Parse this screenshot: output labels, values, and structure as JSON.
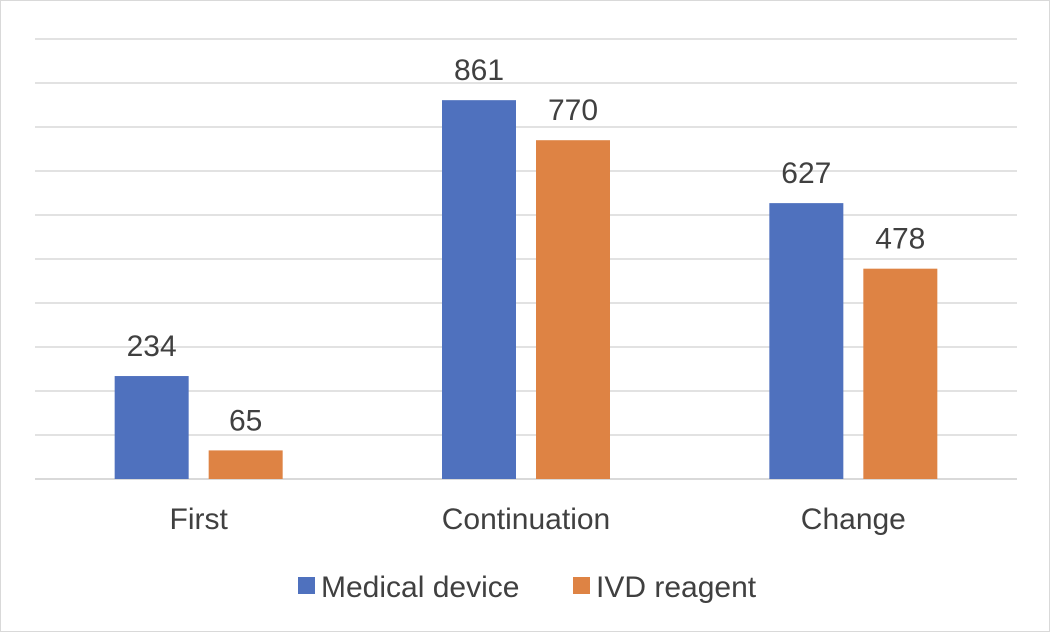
{
  "chart_data": {
    "type": "bar",
    "title": "",
    "xlabel": "",
    "ylabel": "",
    "categories": [
      "First",
      "Continuation",
      "Change"
    ],
    "series": [
      {
        "name": "Medical device",
        "values": [
          234,
          861,
          627
        ],
        "color": "#4F71BE"
      },
      {
        "name": "IVD reagent",
        "values": [
          65,
          770,
          478
        ],
        "color": "#DE8344"
      }
    ],
    "ylim": [
      0,
      1000
    ],
    "grid_step": 100,
    "grid": true,
    "legend_position": "bottom"
  }
}
